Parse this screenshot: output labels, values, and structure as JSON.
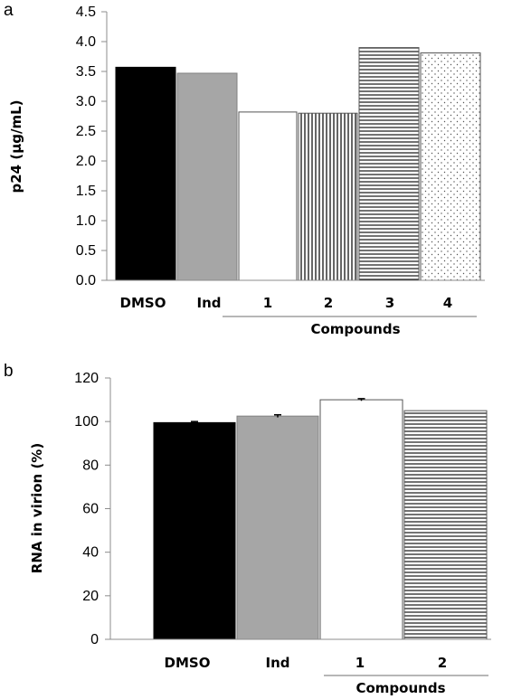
{
  "chart_data": [
    {
      "panel": "a",
      "type": "bar",
      "categories": [
        "DMSO",
        "Ind",
        "1",
        "2",
        "3",
        "4"
      ],
      "values": [
        3.57,
        3.47,
        2.82,
        2.8,
        3.9,
        3.81
      ],
      "patterns": [
        "solid-black",
        "solid-gray",
        "white",
        "vertical-lines",
        "horizontal-lines",
        "dots"
      ],
      "ylabel": "p24 (μg/mL)",
      "yticks": [
        "0.0",
        "0.5",
        "1.0",
        "1.5",
        "2.0",
        "2.5",
        "3.0",
        "3.5",
        "4.0",
        "4.5"
      ],
      "ylim": [
        0,
        4.5
      ],
      "group_label": "Compounds",
      "group_categories": [
        "1",
        "2",
        "3",
        "4"
      ],
      "grid": false,
      "legend": "none"
    },
    {
      "panel": "b",
      "type": "bar",
      "categories": [
        "DMSO",
        "Ind",
        "1",
        "2"
      ],
      "values": [
        99.5,
        102.5,
        110,
        105
      ],
      "error": [
        0.5,
        0.6,
        0.5,
        0
      ],
      "patterns": [
        "solid-black",
        "solid-gray",
        "white",
        "horizontal-lines"
      ],
      "ylabel": "RNA in virion (%)",
      "yticks": [
        "0",
        "20",
        "40",
        "60",
        "80",
        "100",
        "120"
      ],
      "ylim": [
        0,
        120
      ],
      "group_label": "Compounds",
      "group_categories": [
        "1",
        "2"
      ],
      "grid": false,
      "legend": "none"
    }
  ],
  "colors": {
    "black": "#000000",
    "gray": "#a6a6a6",
    "white": "#ffffff",
    "axis": "#8c8c8c"
  }
}
